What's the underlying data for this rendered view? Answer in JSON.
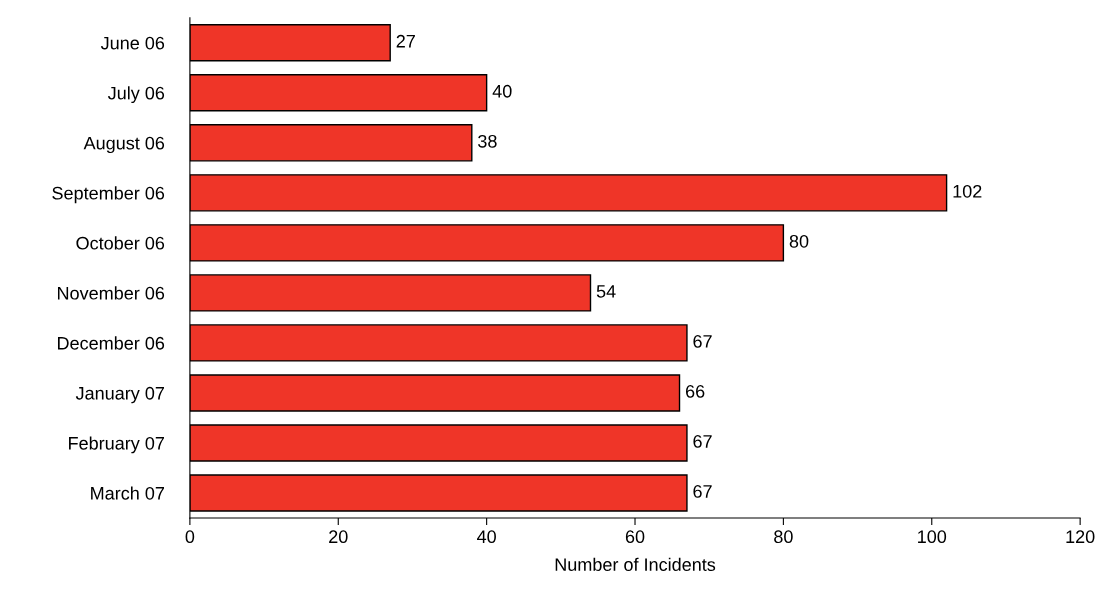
{
  "chart_data": {
    "type": "bar",
    "orientation": "horizontal",
    "xlabel": "Number of Incidents",
    "categories": [
      "June 06",
      "July 06",
      "August 06",
      "September 06",
      "October 06",
      "November 06",
      "December 06",
      "January 07",
      "February 07",
      "March 07"
    ],
    "values": [
      27,
      40,
      38,
      102,
      80,
      54,
      67,
      66,
      67,
      67
    ],
    "color": "#ef3528",
    "xlim": [
      0,
      120
    ],
    "xticks": [
      0,
      20,
      40,
      60,
      80,
      100,
      120
    ],
    "data_labels": true,
    "grid": false,
    "legend": false
  }
}
